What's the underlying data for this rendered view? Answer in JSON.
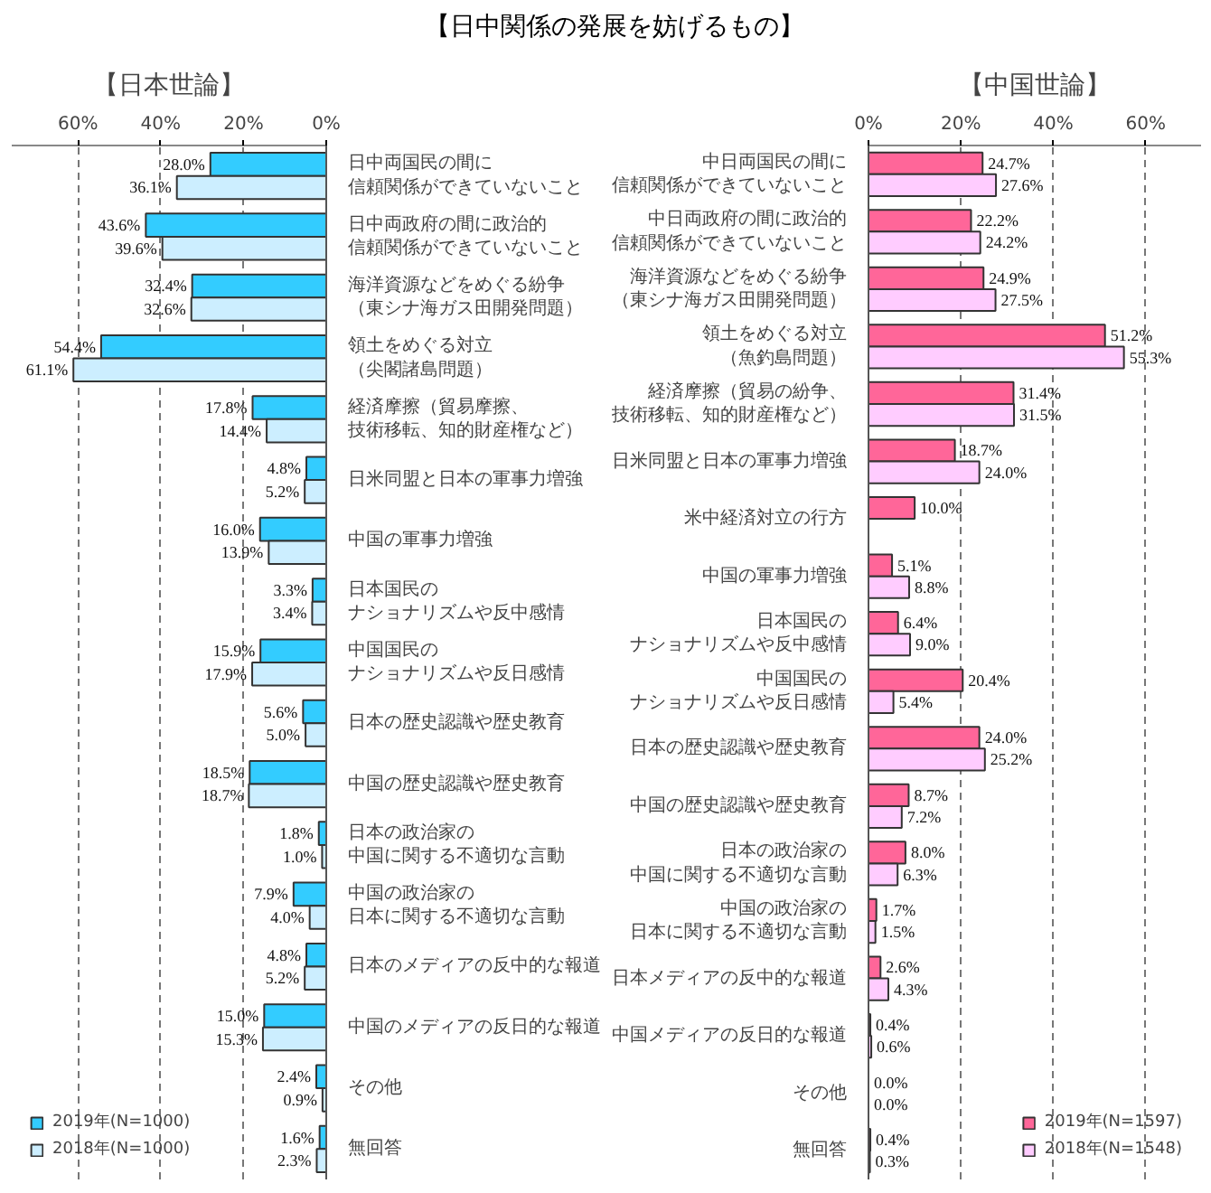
{
  "chart_data": [
    {
      "type": "bar",
      "orientation": "horizontal",
      "title": "【日中関係の発展を妨げるもの】",
      "subtitle": "【日本世論】",
      "categories": [
        "日中両国民の間に信頼関係ができていないこと",
        "日中両政府の間に政治的信頼関係ができていないこと",
        "海洋資源などをめぐる紛争（東シナ海ガス田開発問題）",
        "領土をめぐる対立（尖閣諸島問題）",
        "経済摩擦（貿易摩擦、技術移転、知的財産権など）",
        "日米同盟と日本の軍事力増強",
        "中国の軍事力増強",
        "日本国民のナショナリズムや反中感情",
        "中国国民のナショナリズムや反日感情",
        "日本の歴史認識や歴史教育",
        "中国の歴史認識や歴史教育",
        "日本の政治家の中国に関する不適切な言動",
        "中国の政治家の日本に関する不適切な言動",
        "日本のメディアの反中的な報道",
        "中国のメディアの反日的な報道",
        "その他",
        "無回答"
      ],
      "series": [
        {
          "name": "2019年(N=1000)",
          "color": "#33ccff",
          "values": [
            28.0,
            43.6,
            32.4,
            54.4,
            17.8,
            4.8,
            16.0,
            3.3,
            15.9,
            5.6,
            18.5,
            1.8,
            7.9,
            4.8,
            15.0,
            2.4,
            1.6
          ],
          "value_labels": [
            "28.0%",
            "43.6%",
            "32.4%",
            "54.4%",
            "17.8%",
            "4.8%",
            "16.0%",
            "3.3%",
            "15.9%",
            "5.6%",
            "18.5%",
            "1.8%",
            "7.9%",
            "4.8%",
            "15.0%",
            "2.4%",
            "1.6%"
          ]
        },
        {
          "name": "2018年(N=1000)",
          "color": "#cceeff",
          "values": [
            36.1,
            39.6,
            32.6,
            61.1,
            14.4,
            5.2,
            13.9,
            3.4,
            17.9,
            5.0,
            18.7,
            1.0,
            4.0,
            5.2,
            15.3,
            0.9,
            2.3
          ],
          "value_labels": [
            "36.1%",
            "39.6%",
            "32.6%",
            "61.1%",
            "14.4%",
            "5.2%",
            "13.9%",
            "3.4%",
            "17.9%",
            "5.0%",
            "18.7%",
            "1.0%",
            "4.0%",
            "5.2%",
            "15.3%",
            "0.9%",
            "2.3%"
          ]
        }
      ],
      "xlim": [
        76,
        0
      ],
      "xticks": [
        {
          "value": 60,
          "label": "60%"
        },
        {
          "value": 40,
          "label": "40%"
        },
        {
          "value": 20,
          "label": "20%"
        },
        {
          "value": 0,
          "label": "0%"
        }
      ],
      "grid": "x",
      "legend": "bottom left"
    },
    {
      "type": "bar",
      "orientation": "horizontal",
      "subtitle": "【中国世論】",
      "categories": [
        "中日両国民の間に信頼関係ができていないこと",
        "中日両政府の間に政治的信頼関係ができていないこと",
        "海洋資源などをめぐる紛争（東シナ海ガス田開発問題）",
        "領土をめぐる対立（魚釣島問題）",
        "経済摩擦（貿易の紛争、技術移転、知的財産権など）",
        "日米同盟と日本の軍事力増強",
        "米中経済対立の行方",
        "中国の軍事力増強",
        "日本国民のナショナリズムや反中感情",
        "中国国民のナショナリズムや反日感情",
        "日本の歴史認識や歴史教育",
        "中国の歴史認識や歴史教育",
        "日本の政治家の中国に関する不適切な言動",
        "中国の政治家の日本に関する不適切な言動",
        "日本メディアの反中的な報道",
        "中国メディアの反日的な報道",
        "その他",
        "無回答"
      ],
      "series": [
        {
          "name": "2019年(N=1597)",
          "color": "#ff6699",
          "values": [
            24.7,
            22.2,
            24.9,
            51.2,
            31.4,
            18.7,
            10.0,
            5.1,
            6.4,
            20.4,
            24.0,
            8.7,
            8.0,
            1.7,
            2.6,
            0.4,
            0.0,
            0.4
          ],
          "value_labels": [
            "24.7%",
            "22.2%",
            "24.9%",
            "51.2%",
            "31.4%",
            "18.7%",
            "10.0%",
            "5.1%",
            "6.4%",
            "20.4%",
            "24.0%",
            "8.7%",
            "8.0%",
            "1.7%",
            "2.6%",
            "0.4%",
            "0.0%",
            "0.4%"
          ]
        },
        {
          "name": "2018年(N=1548)",
          "color": "#ffccff",
          "values": [
            27.6,
            24.2,
            27.5,
            55.3,
            31.5,
            24.0,
            null,
            8.8,
            9.0,
            5.4,
            25.2,
            7.2,
            6.3,
            1.5,
            4.3,
            0.6,
            0.0,
            0.3
          ],
          "value_labels": [
            "27.6%",
            "24.2%",
            "27.5%",
            "55.3%",
            "31.5%",
            "24.0%",
            null,
            "8.8%",
            "9.0%",
            "5.4%",
            "25.2%",
            "7.2%",
            "6.3%",
            "1.5%",
            "4.3%",
            "0.6%",
            "0.0%",
            "0.3%"
          ]
        }
      ],
      "xlim": [
        0,
        72
      ],
      "xticks": [
        {
          "value": 0,
          "label": "0%"
        },
        {
          "value": 20,
          "label": "20%"
        },
        {
          "value": 40,
          "label": "40%"
        },
        {
          "value": 60,
          "label": "60%"
        }
      ],
      "grid": "x",
      "legend": "bottom right"
    }
  ]
}
